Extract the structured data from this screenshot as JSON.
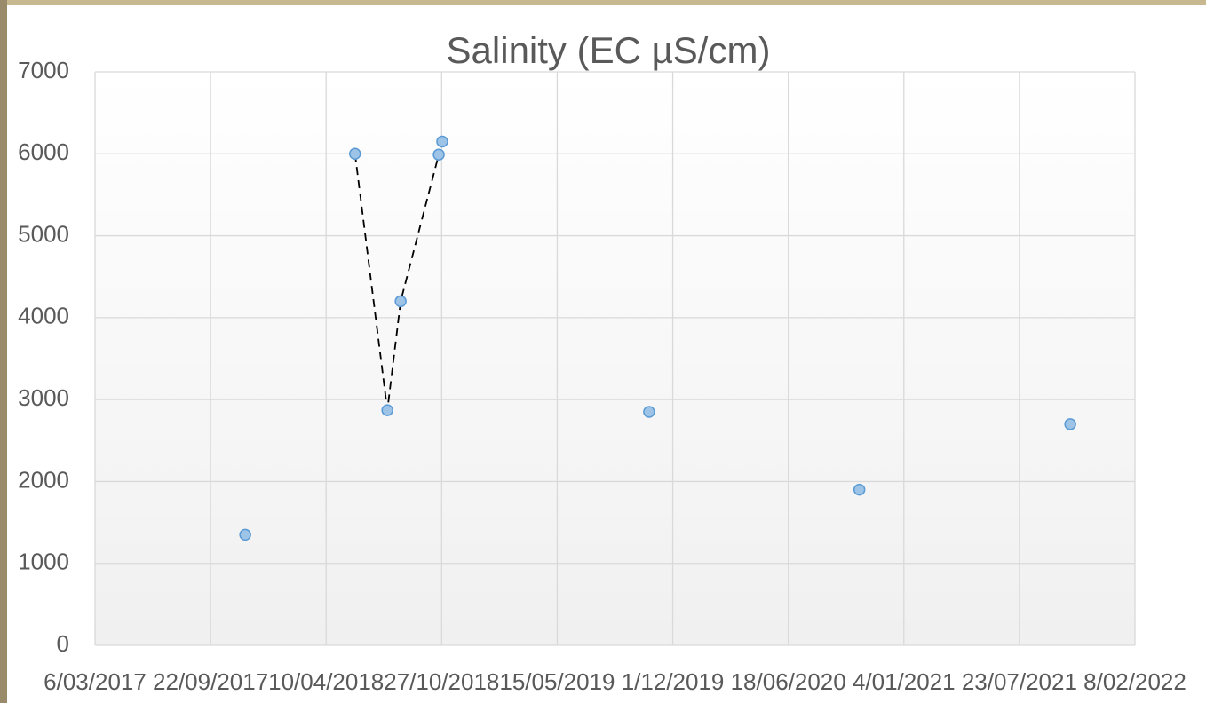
{
  "chart_data": {
    "type": "scatter",
    "title": "Salinity (EC µS/cm)",
    "xlim": [
      "2017-03-06",
      "2022-02-08"
    ],
    "xticks": [
      {
        "value": "2017-03-06",
        "label": "6/03/2017"
      },
      {
        "value": "2017-09-22",
        "label": "22/09/2017"
      },
      {
        "value": "2018-04-10",
        "label": "10/04/2018"
      },
      {
        "value": "2018-10-27",
        "label": "27/10/2018"
      },
      {
        "value": "2019-05-15",
        "label": "15/05/2019"
      },
      {
        "value": "2019-12-01",
        "label": "1/12/2019"
      },
      {
        "value": "2020-06-18",
        "label": "18/06/2020"
      },
      {
        "value": "2021-01-04",
        "label": "4/01/2021"
      },
      {
        "value": "2021-07-23",
        "label": "23/07/2021"
      },
      {
        "value": "2022-02-08",
        "label": "8/02/2022"
      }
    ],
    "ylim": [
      0,
      7000
    ],
    "yticks": [
      0,
      1000,
      2000,
      3000,
      4000,
      5000,
      6000,
      7000
    ],
    "grid": true,
    "series": [
      {
        "mode": "markers",
        "color": "#9dc3e6",
        "x": [
          "2017-11-21",
          "2018-05-30",
          "2018-07-25",
          "2018-08-17",
          "2018-10-22",
          "2018-10-28",
          "2019-10-21",
          "2020-10-19",
          "2021-10-19"
        ],
        "values": [
          1350,
          6000,
          2870,
          4200,
          5990,
          6150,
          2850,
          1900,
          2700
        ]
      },
      {
        "mode": "dashed-line",
        "color": "#000000",
        "x": [
          "2018-05-30",
          "2018-07-25",
          "2018-08-17",
          "2018-10-22"
        ],
        "values": [
          6000,
          2870,
          4200,
          5990
        ]
      }
    ]
  }
}
